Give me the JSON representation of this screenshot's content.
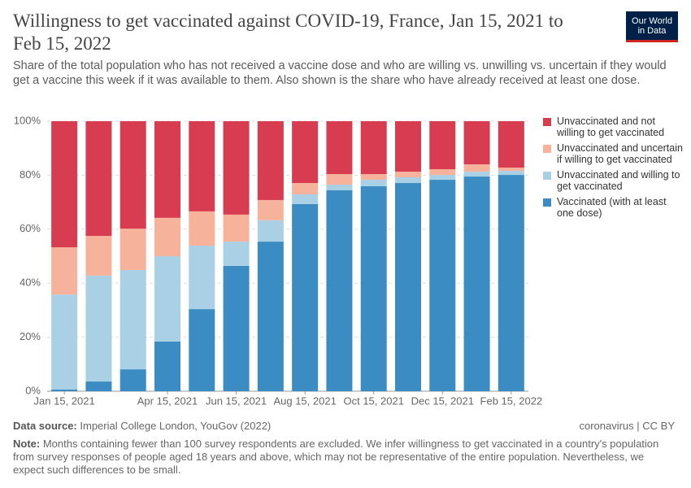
{
  "chart_data": {
    "type": "stacked_bar",
    "title": "Willingness to get vaccinated against COVID-19, France, Jan 15, 2021 to Feb 15, 2022",
    "subtitle": "Share of the total population who has not received a vaccine dose and who are willing vs. unwilling vs. uncertain if they would get a vaccine this week if it was available to them. Also shown is the share who have already received at least one dose.",
    "logo": "Our World in Data",
    "categories": [
      "Jan 15, 2021",
      null,
      null,
      "Apr 15, 2021",
      null,
      "Jun 15, 2021",
      null,
      "Aug 15, 2021",
      null,
      "Oct 15, 2021",
      null,
      "Dec 15, 2021",
      null,
      "Feb 15, 2022"
    ],
    "series": [
      {
        "name": "Unvaccinated and not willing to get vaccinated",
        "color": "#d73c50",
        "values": [
          46.7,
          42.5,
          39.8,
          35.8,
          33.4,
          34.6,
          29.2,
          22.9,
          19.6,
          19.6,
          18.7,
          17.8,
          16.0,
          17.2
        ]
      },
      {
        "name": "Unvaccinated and uncertain if willing to get vaccinated",
        "color": "#f6b29b",
        "values": [
          17.5,
          14.7,
          15.3,
          14.2,
          12.7,
          10.0,
          7.5,
          4.2,
          3.9,
          2.1,
          2.1,
          2.1,
          2.7,
          1.2
        ]
      },
      {
        "name": "Unvaccinated and willing to get vaccinated",
        "color": "#a9d0e4",
        "values": [
          35.2,
          39.2,
          36.8,
          31.6,
          23.5,
          9.0,
          7.9,
          3.6,
          2.1,
          2.4,
          2.1,
          1.8,
          1.8,
          1.5
        ]
      },
      {
        "name": "Vaccinated (with at least one dose)",
        "color": "#3a8cc3",
        "values": [
          0.6,
          3.6,
          8.1,
          18.4,
          30.4,
          46.4,
          55.4,
          69.3,
          74.4,
          75.9,
          77.1,
          78.3,
          79.5,
          80.1
        ]
      }
    ],
    "ylim": [
      0,
      100
    ],
    "yticks": [
      {
        "value": 0,
        "label": "0%"
      },
      {
        "value": 20,
        "label": "20%"
      },
      {
        "value": 40,
        "label": "40%"
      },
      {
        "value": 60,
        "label": "60%"
      },
      {
        "value": 80,
        "label": "80%"
      },
      {
        "value": 100,
        "label": "100%"
      }
    ],
    "grid": true,
    "source_label": "Data source:",
    "source": "Imperial College London, YouGov (2022)",
    "license": "coronavirus | CC BY",
    "note_label": "Note:",
    "note": "Months containing fewer than 100 survey respondents are excluded. We infer willingness to get vaccinated in a country's population from survey responses of people aged 18 years and above, which may not be representative of the entire population. Nevertheless, we expect such differences to be small."
  }
}
